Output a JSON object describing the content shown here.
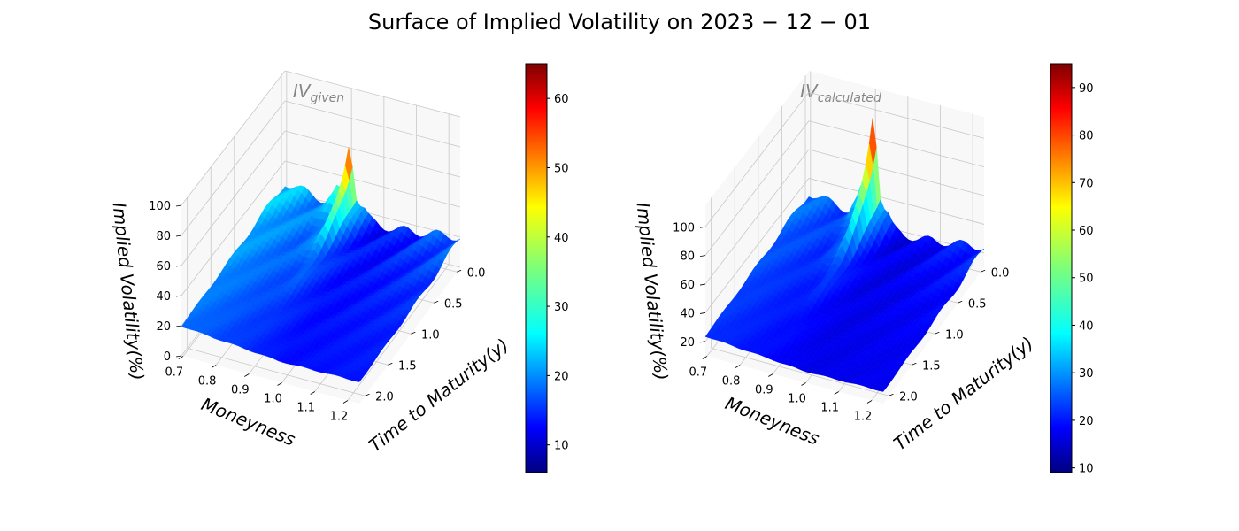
{
  "chart_data": {
    "type": "surface3d",
    "title": "Surface of Implied Volatility on 2023 − 12 − 01",
    "colormap": "jet",
    "panels": [
      {
        "title_main": "IV",
        "title_sub": "given",
        "xlabel": "Moneyness",
        "ylabel": "Time to Maturity(y)",
        "zlabel": "Implied Volatility(%)",
        "x_ticks": [
          "0.7",
          "0.8",
          "0.9",
          "1.0",
          "1.1",
          "1.2"
        ],
        "y_ticks": [
          "0.0",
          "0.5",
          "1.0",
          "1.5",
          "2.0"
        ],
        "z_ticks": [
          "0",
          "20",
          "40",
          "60",
          "80",
          "100"
        ],
        "zlim": [
          0,
          100
        ],
        "colorbar_ticks": [
          "10",
          "20",
          "30",
          "40",
          "50",
          "60"
        ],
        "colorbar_range": [
          6,
          65
        ],
        "surface_ranges": {
          "min": 6,
          "max": 65,
          "peak_moneyness": 0.9,
          "peak_maturity": 0.05
        }
      },
      {
        "title_main": "IV",
        "title_sub": "calculated",
        "xlabel": "Moneyness",
        "ylabel": "Time to Maturity(y)",
        "zlabel": "Implied Volatility(%)",
        "x_ticks": [
          "0.7",
          "0.8",
          "0.9",
          "1.0",
          "1.1",
          "1.2"
        ],
        "y_ticks": [
          "0.0",
          "0.5",
          "1.0",
          "1.5",
          "2.0"
        ],
        "z_ticks": [
          "20",
          "40",
          "60",
          "80",
          "100"
        ],
        "zlim": [
          10,
          115
        ],
        "colorbar_ticks": [
          "10",
          "20",
          "30",
          "40",
          "50",
          "60",
          "70",
          "80",
          "90"
        ],
        "colorbar_range": [
          9,
          95
        ],
        "surface_ranges": {
          "min": 9,
          "max": 95,
          "peak_moneyness": 0.9,
          "peak_maturity": 0.05
        }
      }
    ]
  }
}
